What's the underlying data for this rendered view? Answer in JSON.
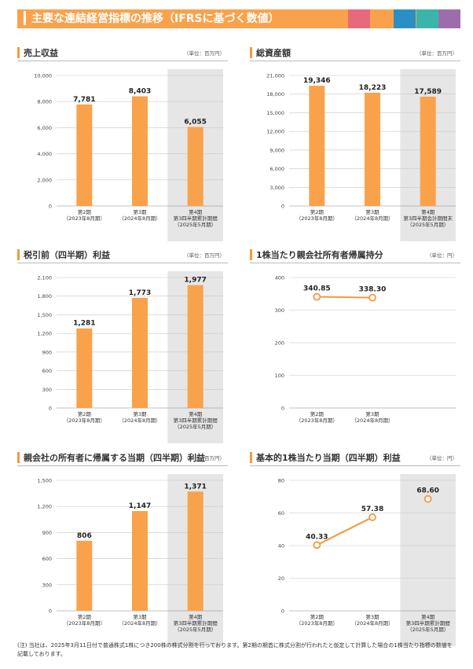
{
  "header": {
    "title": "主要な連結経営指標の推移（IFRSに基づく数値）",
    "swatches": [
      "#e8697a",
      "#f9a24b",
      "#2a8fc4",
      "#3bb5a9",
      "#9b6eab"
    ]
  },
  "colors": {
    "bar": "#f9a24b",
    "line": "#f39a3c",
    "shade": "#e6e6e6",
    "grid": "#c8c8c8"
  },
  "panels": [
    {
      "title": "売上収益",
      "unit": "（単位：百万円）",
      "chart_data": {
        "type": "bar",
        "categories": [
          [
            "第2期",
            "（2023年8月期）"
          ],
          [
            "第3期",
            "（2024年8月期）"
          ],
          [
            "第4期",
            "第3四半期累計期間",
            "（2025年5月期）"
          ]
        ],
        "values": [
          7781,
          8403,
          6055
        ],
        "labels": [
          "7,781",
          "8,403",
          "6,055"
        ],
        "ylim": [
          0,
          10000
        ],
        "yticks": [
          0,
          2000,
          4000,
          6000,
          8000,
          10000
        ],
        "ytick_labels": [
          "0",
          "2,000",
          "4,000",
          "6,000",
          "8,000",
          "10,000"
        ],
        "shade_last": true
      }
    },
    {
      "title": "総資産額",
      "unit": "（単位：百万円）",
      "chart_data": {
        "type": "bar",
        "categories": [
          [
            "第2期",
            "（2023年8月期）"
          ],
          [
            "第3期",
            "（2024年8月期）"
          ],
          [
            "第4期",
            "第3四半期会計期間末",
            "（2025年5月期）"
          ]
        ],
        "values": [
          19346,
          18223,
          17589
        ],
        "labels": [
          "19,346",
          "18,223",
          "17,589"
        ],
        "ylim": [
          0,
          21000
        ],
        "yticks": [
          0,
          3000,
          6000,
          9000,
          12000,
          15000,
          18000,
          21000
        ],
        "ytick_labels": [
          "0",
          "3,000",
          "6,000",
          "9,000",
          "12,000",
          "15,000",
          "18,000",
          "21,000"
        ],
        "shade_last": true
      }
    },
    {
      "title": "税引前（四半期）利益",
      "unit": "（単位：百万円）",
      "chart_data": {
        "type": "bar",
        "categories": [
          [
            "第2期",
            "（2023年8月期）"
          ],
          [
            "第3期",
            "（2024年8月期）"
          ],
          [
            "第4期",
            "第3四半期累計期間",
            "（2025年5月期）"
          ]
        ],
        "values": [
          1281,
          1773,
          1977
        ],
        "labels": [
          "1,281",
          "1,773",
          "1,977"
        ],
        "ylim": [
          0,
          2100
        ],
        "yticks": [
          0,
          300,
          600,
          900,
          1200,
          1500,
          1800,
          2100
        ],
        "ytick_labels": [
          "0",
          "300",
          "600",
          "900",
          "1,200",
          "1,500",
          "1,800",
          "2,100"
        ],
        "shade_last": true
      }
    },
    {
      "title": "1株当たり親会社所有者帰属持分",
      "unit": "（単位：円）",
      "chart_data": {
        "type": "line",
        "categories": [
          [
            "第2期",
            "（2023年8月期）"
          ],
          [
            "第3期",
            "（2024年8月期）"
          ]
        ],
        "slots": 3,
        "values": [
          340.85,
          338.3
        ],
        "labels": [
          "340.85",
          "338.30"
        ],
        "ylim": [
          0,
          400
        ],
        "yticks": [
          0,
          100,
          200,
          300,
          400
        ],
        "ytick_labels": [
          "0",
          "100",
          "200",
          "300",
          "400"
        ],
        "shade_last": false
      }
    },
    {
      "title": "親会社の所有者に帰属する当期（四半期）利益",
      "unit": "（単位：百万円）",
      "chart_data": {
        "type": "bar",
        "categories": [
          [
            "第2期",
            "（2023年8月期）"
          ],
          [
            "第3期",
            "（2024年8月期）"
          ],
          [
            "第4期",
            "第3四半期累計期間",
            "（2025年5月期）"
          ]
        ],
        "values": [
          806,
          1147,
          1371
        ],
        "labels": [
          "806",
          "1,147",
          "1,371"
        ],
        "ylim": [
          0,
          1500
        ],
        "yticks": [
          0,
          300,
          600,
          900,
          1200,
          1500
        ],
        "ytick_labels": [
          "0",
          "300",
          "600",
          "900",
          "1,200",
          "1,500"
        ],
        "shade_last": true
      }
    },
    {
      "title": "基本的1株当たり当期（四半期）利益",
      "unit": "（単位：円）",
      "chart_data": {
        "type": "line",
        "categories": [
          [
            "第2期",
            "（2023年8月期）"
          ],
          [
            "第3期",
            "（2024年8月期）"
          ],
          [
            "第4期",
            "第3四半期累計期間",
            "（2025年5月期）"
          ]
        ],
        "slots": 3,
        "values": [
          40.33,
          57.38,
          68.6
        ],
        "labels": [
          "40.33",
          "57.38",
          "68.60"
        ],
        "connect_until": 2,
        "ylim": [
          0,
          80
        ],
        "yticks": [
          0,
          20,
          40,
          60,
          80
        ],
        "ytick_labels": [
          "0",
          "20",
          "40",
          "60",
          "80"
        ],
        "shade_last": true
      }
    }
  ],
  "footnote": "(注) 当社は、2025年3月11日付で普通株式1株につき200株の株式分割を行っております。第2期の期首に株式分割が行われたと仮定して計算した場合の1株当たり指標の数値を記載しております。"
}
